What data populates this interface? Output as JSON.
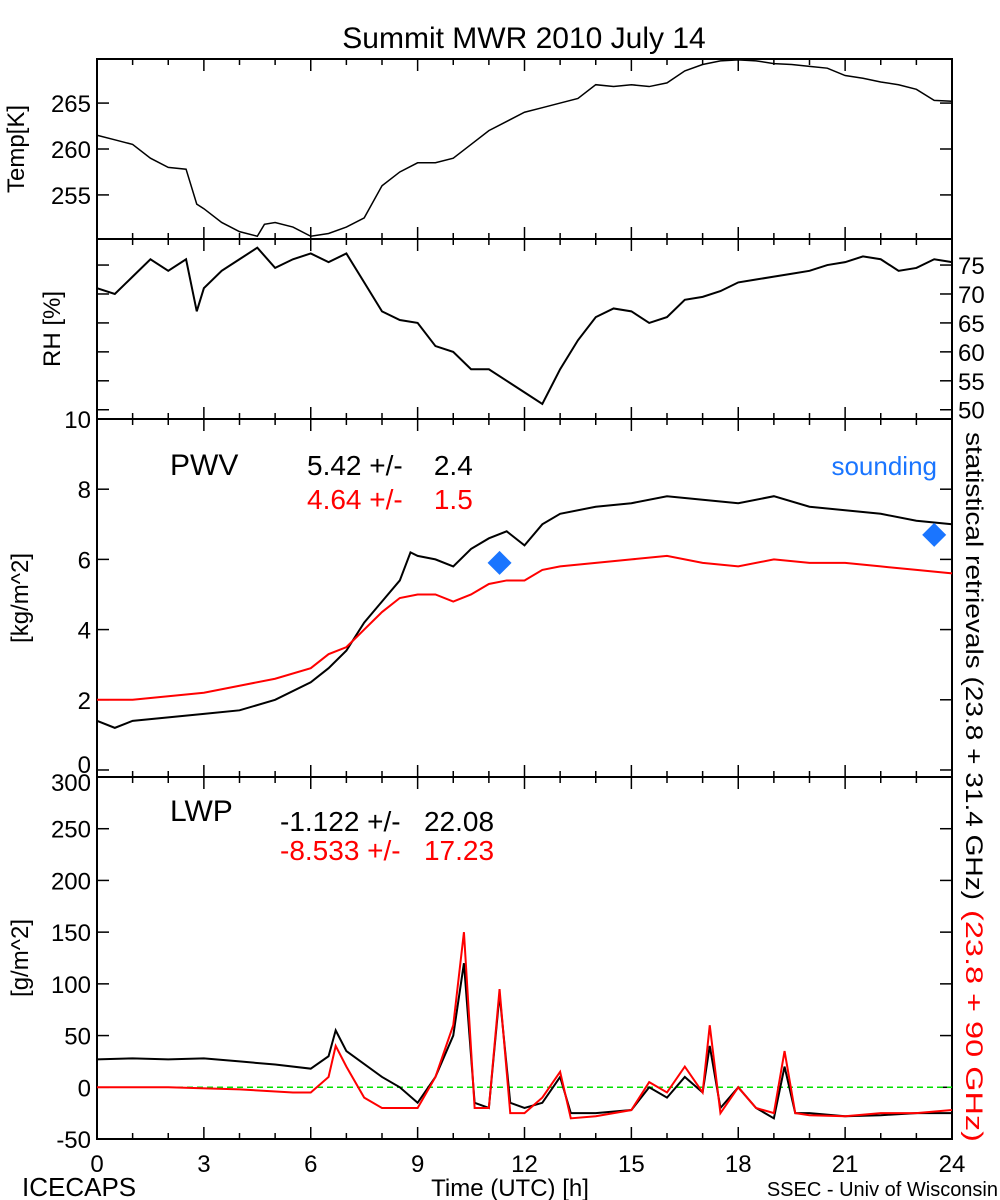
{
  "chart_data": {
    "type": "line",
    "title": "Summit MWR 2010 July 14",
    "xlabel": "Time (UTC) [h]",
    "xlim": [
      0,
      24
    ],
    "xticks": [
      "0",
      "3",
      "6",
      "9",
      "12",
      "15",
      "18",
      "21",
      "24"
    ],
    "footer_left": "ICECAPS",
    "footer_right": "SSEC - Univ of Wisconsin",
    "right_label_black": "statistical retrievals (23.8 + 31.4 GHz)",
    "right_label_red": "(23.8 + 90 GHz)",
    "colors": {
      "black": "#000000",
      "red": "#ff0000",
      "sounding": "#1a75ff",
      "zero": "#00e000"
    },
    "panels": {
      "temp": {
        "ylabel": "Temp[K]",
        "ylim": [
          250.2,
          269.8
        ],
        "yticks": [
          "255",
          "260",
          "265"
        ],
        "ytick_values": [
          255,
          260,
          265
        ],
        "x": [
          0,
          0.5,
          1,
          1.5,
          2,
          2.5,
          2.8,
          3,
          3.5,
          4,
          4.5,
          4.7,
          5,
          5.5,
          6,
          6.5,
          7,
          7.5,
          8,
          8.5,
          9,
          9.5,
          10,
          10.5,
          11,
          11.5,
          12,
          12.5,
          13,
          13.5,
          14,
          14.5,
          15,
          15.5,
          16,
          16.5,
          17,
          17.5,
          18,
          18.5,
          19,
          19.5,
          20,
          20.5,
          21,
          21.5,
          22,
          22.5,
          23,
          23.5,
          24
        ],
        "y": [
          261.5,
          261,
          260.5,
          259,
          258,
          257.8,
          254,
          253.5,
          252,
          251,
          250.5,
          251.8,
          252,
          251.5,
          250.5,
          250.8,
          251.5,
          252.5,
          256,
          257.5,
          258.5,
          258.5,
          259,
          260.5,
          262,
          263,
          264,
          264.5,
          265,
          265.5,
          267,
          266.8,
          267,
          266.8,
          267.2,
          268.5,
          269.2,
          269.6,
          269.7,
          269.6,
          269.3,
          269.2,
          269,
          268.8,
          268,
          267.7,
          267.3,
          267,
          266.5,
          265.3,
          265.2
        ]
      },
      "rh": {
        "ylabel": "RH [%]",
        "ylim": [
          48.4,
          79.5
        ],
        "yticks": [
          "50",
          "55",
          "60",
          "65",
          "70",
          "75"
        ],
        "ytick_values": [
          50,
          55,
          60,
          65,
          70,
          75
        ],
        "x": [
          0,
          0.5,
          1,
          1.5,
          2,
          2.5,
          2.8,
          3,
          3.5,
          4,
          4.5,
          5,
          5.5,
          6,
          6.5,
          7,
          7.5,
          8,
          8.5,
          9,
          9.5,
          10,
          10.5,
          11,
          11.5,
          12,
          12.5,
          13,
          13.5,
          14,
          14.5,
          15,
          15.5,
          16,
          16.5,
          17,
          17.5,
          18,
          18.5,
          19,
          19.5,
          20,
          20.5,
          21,
          21.5,
          22,
          22.5,
          23,
          23.5,
          24
        ],
        "y": [
          71,
          70,
          73,
          76,
          74,
          76,
          67,
          71,
          74,
          76,
          78,
          74.5,
          76,
          77,
          75.5,
          77,
          72,
          67,
          65.5,
          65,
          61,
          60,
          57,
          57,
          55,
          53,
          51,
          57,
          62,
          66,
          67.5,
          67,
          65,
          66,
          69,
          69.5,
          70.5,
          72,
          72.5,
          73,
          73.5,
          74,
          75,
          75.5,
          76.5,
          76,
          74,
          74.5,
          76,
          75.5
        ]
      },
      "pwv": {
        "ylabel": "[kg/m^2]",
        "label": "PWV",
        "ylim": [
          -0.2,
          10
        ],
        "yticks": [
          "0",
          "2",
          "4",
          "6",
          "8",
          "10"
        ],
        "ytick_values": [
          0,
          2,
          4,
          6,
          8,
          10
        ],
        "stat_black": "5.42 +/-    2.4",
        "stat_red": "4.64 +/-    1.5",
        "sounding_label": "sounding",
        "black": {
          "x": [
            0,
            0.5,
            1,
            2,
            3,
            4,
            5,
            6,
            6.5,
            7,
            7.5,
            8,
            8.5,
            8.8,
            9,
            9.5,
            10,
            10.5,
            11,
            11.5,
            12,
            12.5,
            13,
            14,
            15,
            16,
            17,
            18,
            19,
            20,
            21,
            22,
            23,
            24
          ],
          "y": [
            1.4,
            1.2,
            1.4,
            1.5,
            1.6,
            1.7,
            2.0,
            2.5,
            2.9,
            3.4,
            4.2,
            4.8,
            5.4,
            6.2,
            6.1,
            6.0,
            5.8,
            6.3,
            6.6,
            6.8,
            6.4,
            7.0,
            7.3,
            7.5,
            7.6,
            7.8,
            7.7,
            7.6,
            7.8,
            7.5,
            7.4,
            7.3,
            7.1,
            7.0
          ]
        },
        "red": {
          "x": [
            0,
            1,
            2,
            3,
            4,
            5,
            6,
            6.5,
            7,
            7.5,
            8,
            8.5,
            9,
            9.5,
            10,
            10.5,
            11,
            11.5,
            12,
            12.5,
            13,
            14,
            15,
            16,
            17,
            18,
            19,
            20,
            21,
            22,
            23,
            24
          ],
          "y": [
            2.0,
            2.0,
            2.1,
            2.2,
            2.4,
            2.6,
            2.9,
            3.3,
            3.5,
            4.0,
            4.5,
            4.9,
            5.0,
            5.0,
            4.8,
            5.0,
            5.3,
            5.4,
            5.4,
            5.7,
            5.8,
            5.9,
            6.0,
            6.1,
            5.9,
            5.8,
            6.0,
            5.9,
            5.9,
            5.8,
            5.7,
            5.6
          ]
        },
        "sounding": {
          "x": [
            11.3,
            23.5
          ],
          "y": [
            5.9,
            6.7
          ]
        }
      },
      "lwp": {
        "ylabel": "[g/m^2]",
        "label": "LWP",
        "ylim": [
          -50,
          300
        ],
        "yticks": [
          "-50",
          "0",
          "50",
          "100",
          "150",
          "200",
          "250",
          "300"
        ],
        "ytick_values": [
          -50,
          0,
          50,
          100,
          150,
          200,
          250,
          300
        ],
        "stat_black": "-1.122 +/-   22.08",
        "stat_red": "-8.533 +/-   17.23",
        "black": {
          "x": [
            0,
            1,
            2,
            3,
            4,
            5,
            6,
            6.5,
            6.7,
            7,
            8,
            8.5,
            9,
            9.5,
            10,
            10.3,
            10.6,
            11,
            11.3,
            11.6,
            12,
            12.5,
            13,
            13.3,
            14,
            15,
            15.5,
            16,
            16.5,
            17,
            17.2,
            17.5,
            18,
            18.5,
            19,
            19.3,
            19.6,
            20,
            21,
            22,
            23,
            24
          ],
          "y": [
            27,
            28,
            27,
            28,
            25,
            22,
            18,
            30,
            55,
            35,
            10,
            0,
            -15,
            10,
            50,
            120,
            -15,
            -20,
            90,
            -15,
            -20,
            -15,
            10,
            -25,
            -25,
            -22,
            0,
            -10,
            10,
            -5,
            40,
            -20,
            0,
            -20,
            -30,
            20,
            -25,
            -25,
            -28,
            -27,
            -25,
            -25
          ]
        },
        "red": {
          "x": [
            0,
            2,
            4,
            5.5,
            6,
            6.5,
            6.7,
            7,
            7.5,
            8,
            9,
            9.5,
            10,
            10.3,
            10.6,
            11,
            11.3,
            11.6,
            12,
            12.5,
            13,
            13.3,
            14,
            15,
            15.5,
            16,
            16.5,
            17,
            17.2,
            17.5,
            18,
            18.5,
            19,
            19.3,
            19.6,
            20,
            21,
            22,
            23,
            24
          ],
          "y": [
            0,
            0,
            -2,
            -5,
            -5,
            10,
            40,
            20,
            -10,
            -20,
            -20,
            10,
            60,
            150,
            -20,
            -20,
            95,
            -25,
            -25,
            -10,
            15,
            -30,
            -28,
            -22,
            5,
            -5,
            20,
            -5,
            60,
            -25,
            0,
            -20,
            -25,
            35,
            -25,
            -27,
            -28,
            -25,
            -25,
            -22
          ]
        }
      }
    }
  }
}
